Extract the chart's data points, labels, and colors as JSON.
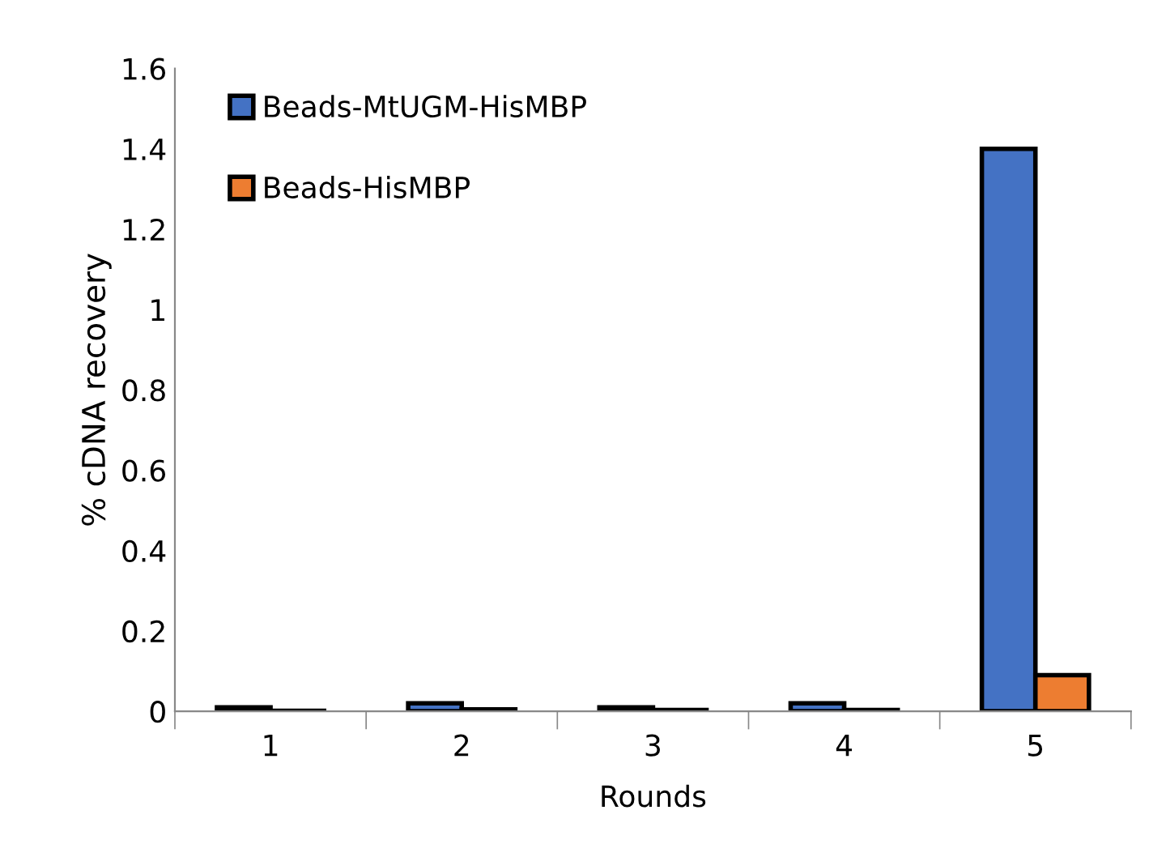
{
  "chart_data": {
    "type": "bar",
    "xlabel": "Rounds",
    "ylabel": "% cDNA recovery",
    "categories": [
      "1",
      "2",
      "3",
      "4",
      "5"
    ],
    "series": [
      {
        "name": "Beads-MtUGM-HisMBP",
        "color": "#4472c4",
        "values": [
          0.01,
          0.02,
          0.01,
          0.02,
          1.4
        ]
      },
      {
        "name": "Beads-HisMBP",
        "color": "#ed7d31",
        "values": [
          0.001,
          0.005,
          0.003,
          0.003,
          0.09
        ]
      }
    ],
    "ylim": [
      0,
      1.6
    ],
    "yticks": [
      0,
      0.2,
      0.4,
      0.6,
      0.8,
      1,
      1.2,
      1.4,
      1.6
    ],
    "grid": false,
    "legend": "top left"
  }
}
